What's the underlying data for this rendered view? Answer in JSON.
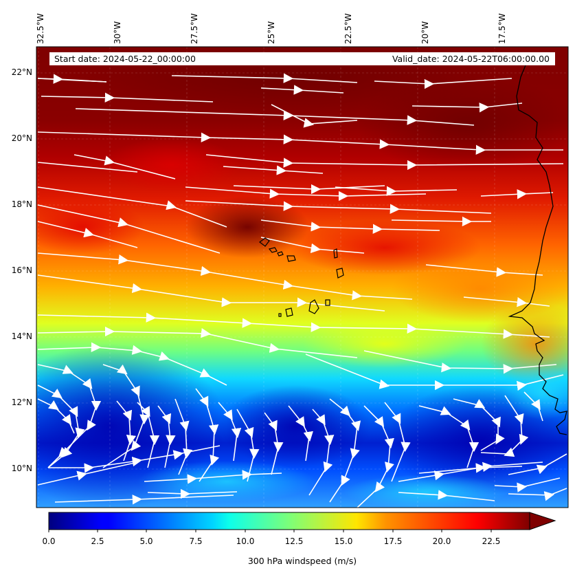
{
  "header": {
    "start_date": "Start date: 2024-05-22_00:00:00",
    "valid_date": "Valid_date: 2024-05-22T06:00:00.00"
  },
  "axes": {
    "lon_labels": [
      "32.5°W",
      "30°W",
      "27.5°W",
      "25°W",
      "22.5°W",
      "20°W",
      "17.5°W"
    ],
    "lat_labels": [
      "22°N",
      "20°N",
      "18°N",
      "16°N",
      "14°N",
      "12°N",
      "10°N"
    ]
  },
  "colorbar": {
    "label": "300 hPa windspeed (m/s)",
    "ticks": [
      "0.0",
      "2.5",
      "5.0",
      "7.5",
      "10.0",
      "12.5",
      "15.0",
      "17.5",
      "20.0",
      "22.5"
    ],
    "colormap": "jet",
    "min": 0,
    "max": 25,
    "extend": "max"
  },
  "map": {
    "field": "300 hPa windspeed",
    "units": "m/s",
    "extent": {
      "lon_min": -32.7,
      "lon_max": -15.3,
      "lat_min": 8.9,
      "lat_max": 22.7
    },
    "streamline_color": "#ffffff",
    "coastline_color": "#000000"
  }
}
